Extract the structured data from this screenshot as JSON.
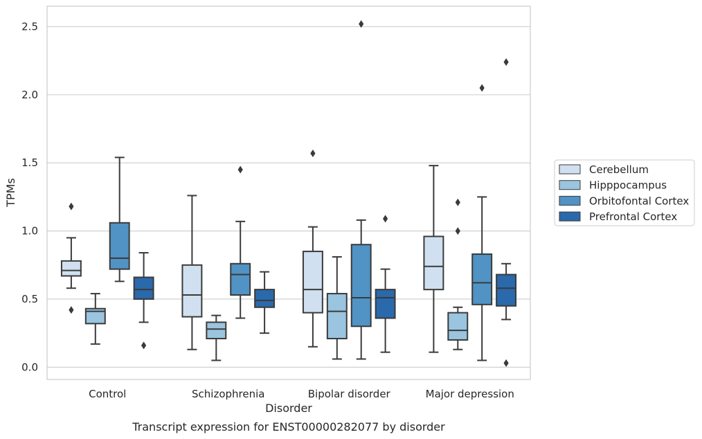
{
  "chart_data": {
    "type": "boxplot",
    "xlabel": "Disorder",
    "ylabel": "TPMs",
    "caption": "Transcript expression for ENST00000282077 by disorder",
    "ylim": [
      -0.09,
      2.65
    ],
    "yticks": [
      0.0,
      0.5,
      1.0,
      1.5,
      2.0,
      2.5
    ],
    "ytick_labels": [
      "0.0",
      "0.5",
      "1.0",
      "1.5",
      "2.0",
      "2.5"
    ],
    "grid": "horizontal",
    "legend_position": "right",
    "categories": [
      "Control",
      "Schizophrenia",
      "Bipolar disorder",
      "Major depression"
    ],
    "series": [
      {
        "name": "Cerebellum",
        "color": "#d0e0f0",
        "boxes": [
          {
            "whisker_low": 0.58,
            "q1": 0.67,
            "median": 0.71,
            "q3": 0.78,
            "whisker_high": 0.95,
            "outliers": [
              1.18,
              0.42
            ]
          },
          {
            "whisker_low": 0.13,
            "q1": 0.37,
            "median": 0.53,
            "q3": 0.75,
            "whisker_high": 1.26,
            "outliers": []
          },
          {
            "whisker_low": 0.15,
            "q1": 0.4,
            "median": 0.57,
            "q3": 0.85,
            "whisker_high": 1.03,
            "outliers": [
              1.57
            ]
          },
          {
            "whisker_low": 0.11,
            "q1": 0.57,
            "median": 0.74,
            "q3": 0.96,
            "whisker_high": 1.48,
            "outliers": []
          }
        ]
      },
      {
        "name": "Hipppocampus",
        "color": "#9ac4df",
        "boxes": [
          {
            "whisker_low": 0.17,
            "q1": 0.32,
            "median": 0.41,
            "q3": 0.43,
            "whisker_high": 0.54,
            "outliers": []
          },
          {
            "whisker_low": 0.05,
            "q1": 0.21,
            "median": 0.28,
            "q3": 0.33,
            "whisker_high": 0.38,
            "outliers": []
          },
          {
            "whisker_low": 0.06,
            "q1": 0.21,
            "median": 0.41,
            "q3": 0.54,
            "whisker_high": 0.81,
            "outliers": []
          },
          {
            "whisker_low": 0.13,
            "q1": 0.2,
            "median": 0.27,
            "q3": 0.4,
            "whisker_high": 0.44,
            "outliers": [
              1.21,
              1.0
            ]
          }
        ]
      },
      {
        "name": "Orbitofontal Cortex",
        "color": "#5093c4",
        "boxes": [
          {
            "whisker_low": 0.63,
            "q1": 0.72,
            "median": 0.8,
            "q3": 1.06,
            "whisker_high": 1.54,
            "outliers": []
          },
          {
            "whisker_low": 0.36,
            "q1": 0.53,
            "median": 0.68,
            "q3": 0.76,
            "whisker_high": 1.07,
            "outliers": [
              1.45
            ]
          },
          {
            "whisker_low": 0.06,
            "q1": 0.3,
            "median": 0.51,
            "q3": 0.9,
            "whisker_high": 1.08,
            "outliers": [
              2.52
            ]
          },
          {
            "whisker_low": 0.05,
            "q1": 0.46,
            "median": 0.62,
            "q3": 0.83,
            "whisker_high": 1.25,
            "outliers": [
              2.05
            ]
          }
        ]
      },
      {
        "name": "Prefrontal Cortex",
        "color": "#2a69ab",
        "boxes": [
          {
            "whisker_low": 0.33,
            "q1": 0.5,
            "median": 0.57,
            "q3": 0.66,
            "whisker_high": 0.84,
            "outliers": [
              0.16
            ]
          },
          {
            "whisker_low": 0.25,
            "q1": 0.44,
            "median": 0.49,
            "q3": 0.57,
            "whisker_high": 0.7,
            "outliers": []
          },
          {
            "whisker_low": 0.11,
            "q1": 0.36,
            "median": 0.51,
            "q3": 0.57,
            "whisker_high": 0.72,
            "outliers": [
              1.09
            ]
          },
          {
            "whisker_low": 0.35,
            "q1": 0.45,
            "median": 0.58,
            "q3": 0.68,
            "whisker_high": 0.76,
            "outliers": [
              2.24,
              0.03
            ]
          }
        ]
      }
    ]
  }
}
